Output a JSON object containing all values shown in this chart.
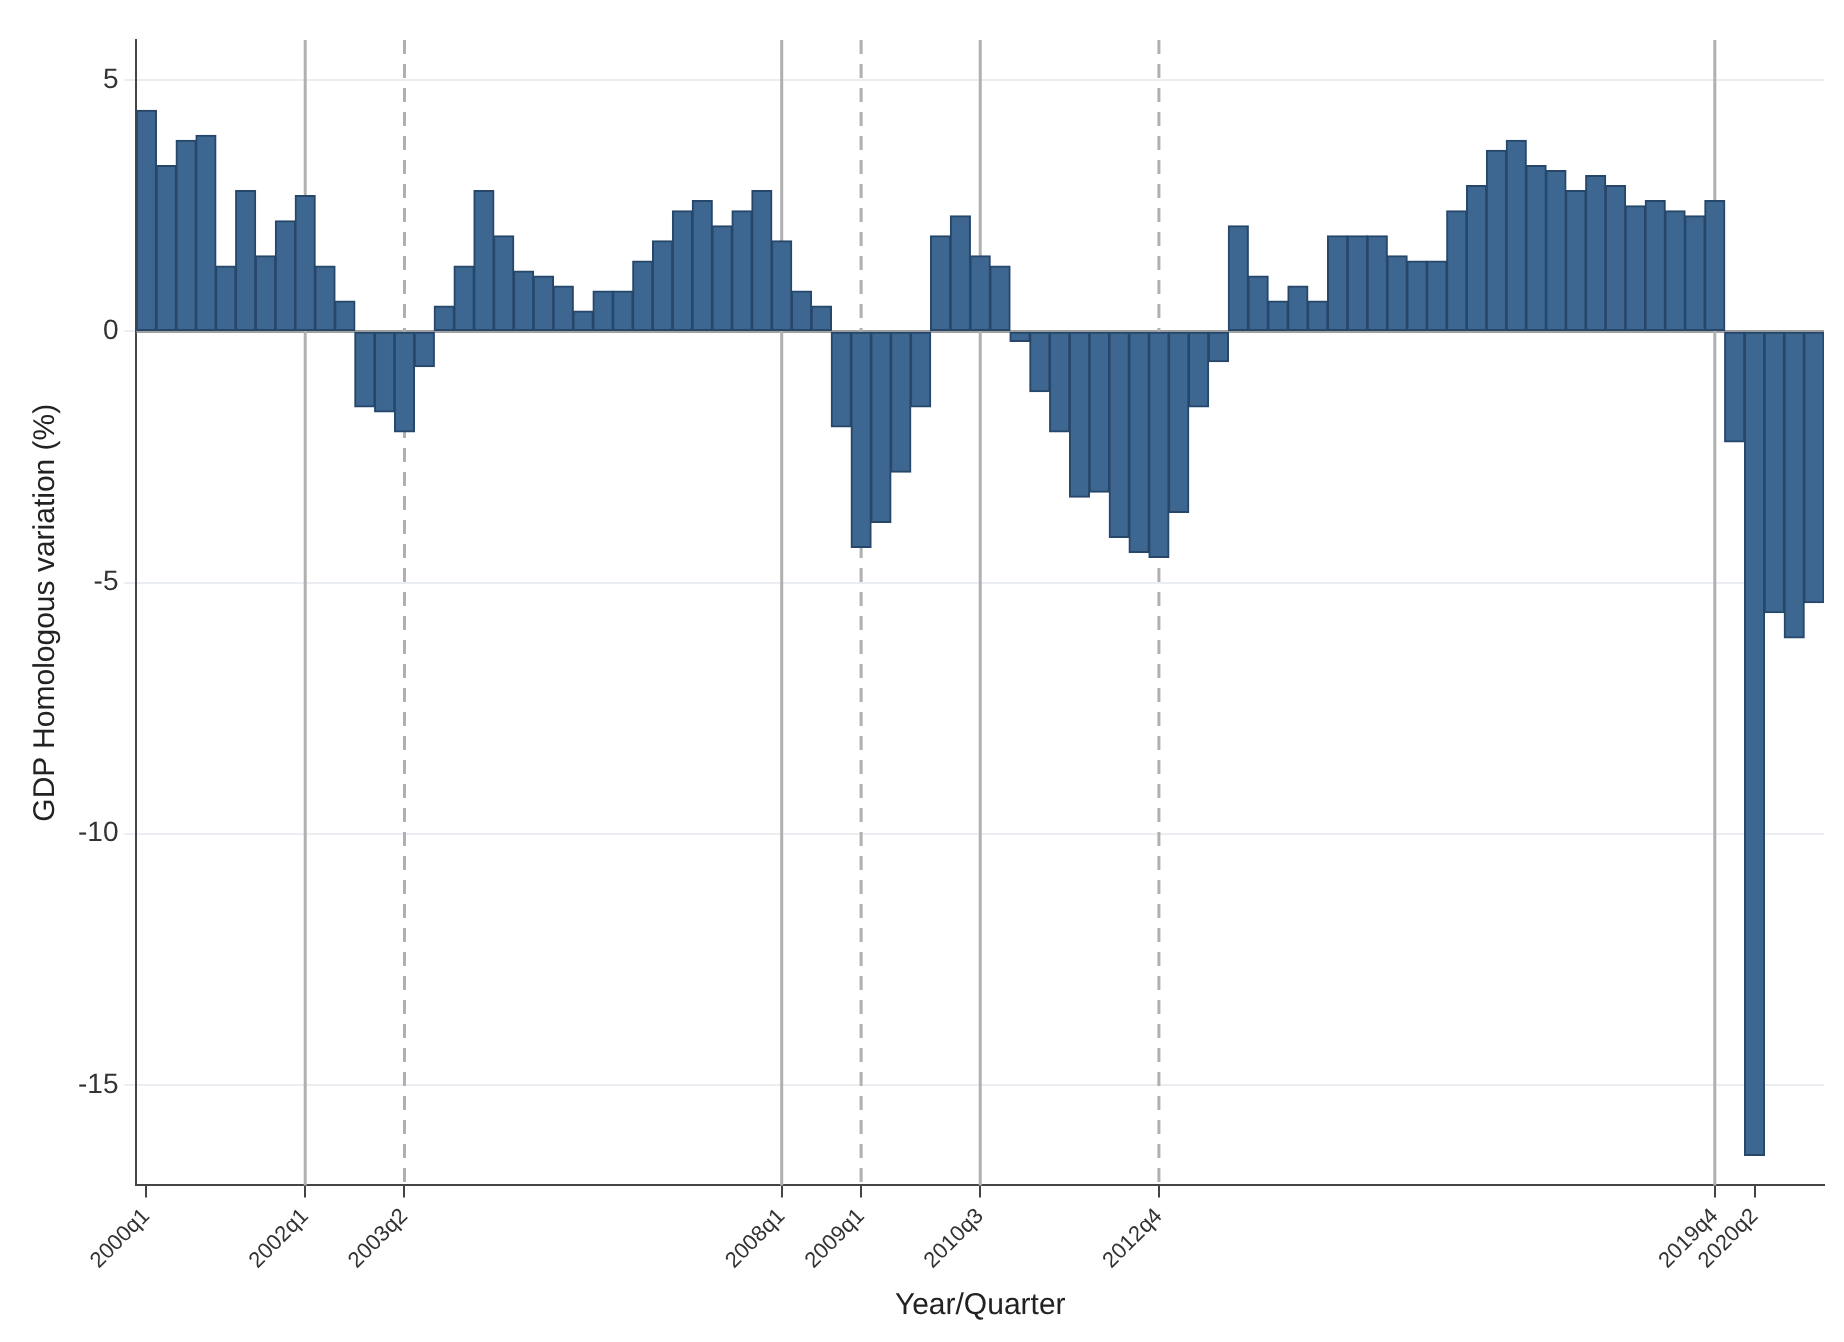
{
  "chart_data": {
    "type": "bar",
    "xlabel": "Year/Quarter",
    "ylabel": "GDP Homologous variation (%)",
    "categories": [
      "2000q1",
      null,
      null,
      null,
      null,
      null,
      null,
      null,
      "2002q1",
      null,
      null,
      null,
      null,
      "2003q2",
      null,
      null,
      null,
      null,
      null,
      null,
      null,
      null,
      null,
      null,
      null,
      null,
      null,
      null,
      null,
      null,
      null,
      null,
      "2008q1",
      null,
      null,
      null,
      "2009q1",
      null,
      null,
      null,
      null,
      null,
      "2010q3",
      null,
      null,
      null,
      null,
      null,
      null,
      null,
      null,
      "2012q4",
      null,
      null,
      null,
      null,
      null,
      null,
      null,
      null,
      null,
      null,
      null,
      null,
      null,
      null,
      null,
      null,
      null,
      null,
      null,
      null,
      null,
      null,
      null,
      null,
      null,
      null,
      null,
      "2019q4",
      null,
      "2020q2",
      null,
      null,
      null
    ],
    "series": [
      {
        "color": "#3d6791",
        "values": [
          4.4,
          3.3,
          3.8,
          3.9,
          1.3,
          2.8,
          1.5,
          2.2,
          2.7,
          1.3,
          0.6,
          -1.5,
          -1.6,
          -2.0,
          -0.7,
          0.5,
          1.3,
          2.8,
          1.9,
          1.2,
          1.1,
          0.9,
          0.4,
          0.8,
          0.8,
          1.4,
          1.8,
          2.4,
          2.6,
          2.1,
          2.4,
          2.8,
          1.8,
          0.8,
          0.5,
          -1.9,
          -4.3,
          -3.8,
          -2.8,
          -1.5,
          1.9,
          2.3,
          1.5,
          1.3,
          -0.2,
          -1.2,
          -2.0,
          -3.3,
          -3.2,
          -4.1,
          -4.4,
          -4.5,
          -3.6,
          -1.5,
          -0.6,
          2.1,
          1.1,
          0.6,
          0.9,
          0.6,
          1.9,
          1.9,
          1.9,
          1.5,
          1.4,
          1.4,
          2.4,
          2.9,
          3.6,
          3.8,
          3.3,
          3.2,
          2.8,
          3.1,
          2.9,
          2.5,
          2.6,
          2.4,
          2.3,
          2.6,
          -2.2,
          -16.4,
          -5.6,
          -6.1,
          -5.4
        ]
      }
    ],
    "ylim": [
      -17,
      5.8
    ],
    "yticks": [
      -15,
      -10,
      -5,
      0,
      5
    ],
    "grid": "y",
    "legend": false,
    "ref_lines": [
      {
        "axis": "y",
        "value": 0,
        "color": "#a0a0a0",
        "line_style": "solid"
      },
      {
        "axis": "x",
        "value": "2002q1",
        "color": "#b0b0b0",
        "line_style": "solid"
      },
      {
        "axis": "x",
        "value": "2008q1",
        "color": "#b0b0b0",
        "line_style": "solid"
      },
      {
        "axis": "x",
        "value": "2010q3",
        "color": "#b0b0b0",
        "line_style": "solid"
      },
      {
        "axis": "x",
        "value": "2019q4",
        "color": "#b0b0b0",
        "line_style": "solid"
      },
      {
        "axis": "x",
        "value": "2003q2",
        "color": "#b0b0b0",
        "line_style": "dashed"
      },
      {
        "axis": "x",
        "value": "2009q1",
        "color": "#b0b0b0",
        "line_style": "dashed"
      },
      {
        "axis": "x",
        "value": "2012q4",
        "color": "#b0b0b0",
        "line_style": "dashed"
      }
    ]
  }
}
